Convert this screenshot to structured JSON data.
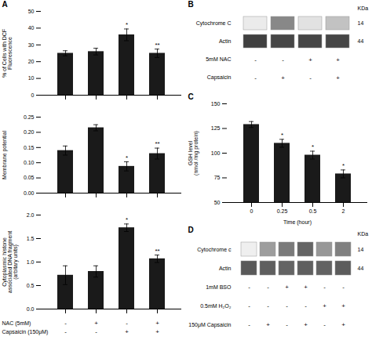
{
  "chart_data": [
    {
      "type": "bar",
      "title": "A",
      "categories": [
        null,
        null,
        null,
        null
      ],
      "values": [
        25,
        26,
        36,
        25
      ],
      "errors": [
        1.5,
        2.0,
        3.5,
        2.5
      ],
      "annotations": [
        null,
        null,
        "*",
        "**"
      ],
      "ylabel": "% of Cells with DCF\nFluorescence",
      "ylim": [
        0,
        50
      ],
      "yticks": [
        0,
        10,
        20,
        30,
        40,
        50
      ],
      "color": "#1a1a1a"
    },
    {
      "type": "bar",
      "categories": [
        null,
        null,
        null,
        null
      ],
      "values": [
        0.14,
        0.215,
        0.088,
        0.13
      ],
      "errors": [
        0.015,
        0.01,
        0.015,
        0.018
      ],
      "annotations": [
        null,
        null,
        "*",
        "**"
      ],
      "ylabel": "Membrane potential",
      "ylim": [
        0,
        0.25
      ],
      "yticks": [
        {
          "value": 0,
          "label": "0.00"
        },
        0.05,
        {
          "value": 0.1,
          "label": "0.10"
        },
        0.15,
        {
          "value": 0.2,
          "label": "0.20"
        },
        0.25
      ],
      "color": "#1a1a1a"
    },
    {
      "type": "bar",
      "categories": [
        null,
        null,
        null,
        null
      ],
      "values": [
        0.72,
        0.8,
        1.73,
        1.07
      ],
      "errors": [
        0.2,
        0.12,
        0.08,
        0.08
      ],
      "annotations": [
        null,
        null,
        "*",
        "**"
      ],
      "ylabel": "Cytoplasmic histone\nassociated DNA fragment\n(arbitary units)",
      "ylim": [
        0.0,
        2.0
      ],
      "yticks": [
        {
          "value": 0,
          "label": "0.0"
        },
        0.5,
        {
          "value": 1,
          "label": "1.0"
        },
        1.5,
        {
          "value": 2,
          "label": "2.0"
        }
      ],
      "sign_rows": [
        {
          "label": "NAC (5mM)",
          "signs": [
            "-",
            "+",
            "-",
            "+"
          ]
        },
        {
          "label": "Capsaicin (150μM)",
          "signs": [
            "-",
            "-",
            "+",
            "+"
          ]
        }
      ],
      "color": "#1a1a1a"
    },
    {
      "type": "blot",
      "title": "B",
      "kda_label": "KDa",
      "rows": [
        {
          "label": "Cytochrome C",
          "kda": "14",
          "values": [
            0.15,
            0.55,
            0.2,
            0.35
          ]
        },
        {
          "label": "Actin",
          "kda": "44",
          "values": [
            0.8,
            0.78,
            0.78,
            0.78
          ]
        }
      ],
      "sign_rows": [
        {
          "label": "5mM NAC",
          "signs": [
            "-",
            "-",
            "+",
            "+"
          ]
        },
        {
          "label": "Capsaicin",
          "signs": [
            "-",
            "+",
            "-",
            "+"
          ]
        }
      ]
    },
    {
      "type": "bar",
      "title": "C",
      "categories": [
        "0",
        "0.25",
        "0.5",
        "2"
      ],
      "values": [
        129,
        110,
        98,
        79
      ],
      "errors": [
        3,
        4,
        4,
        4
      ],
      "annotations": [
        null,
        "*",
        "*",
        "*"
      ],
      "xlabel": "Time (hour)",
      "ylabel": "GSH level\n(nmol /mg protein)",
      "ylim": [
        50,
        150
      ],
      "yticks": [
        50,
        75,
        100,
        125,
        150
      ],
      "color": "#1a1a1a"
    },
    {
      "type": "blot",
      "title": "D",
      "kda_label": "KDa",
      "rows": [
        {
          "label": "Cytochrome c",
          "kda": "14",
          "values": [
            0.12,
            0.48,
            0.6,
            0.68,
            0.5,
            0.58
          ]
        },
        {
          "label": "Actin",
          "kda": "44",
          "values": [
            0.72,
            0.7,
            0.68,
            0.7,
            0.69,
            0.71
          ]
        }
      ],
      "sign_rows": [
        {
          "label": "1mM BSO",
          "signs": [
            "-",
            "-",
            "+",
            "+",
            "-",
            "-"
          ]
        },
        {
          "label": "0.5mM H₂O₂",
          "signs": [
            "-",
            "-",
            "-",
            "-",
            "+",
            "+"
          ]
        },
        {
          "label": "150μM Capsaicin",
          "signs": [
            "-",
            "+",
            "-",
            "+",
            "-",
            "+"
          ]
        }
      ]
    }
  ]
}
